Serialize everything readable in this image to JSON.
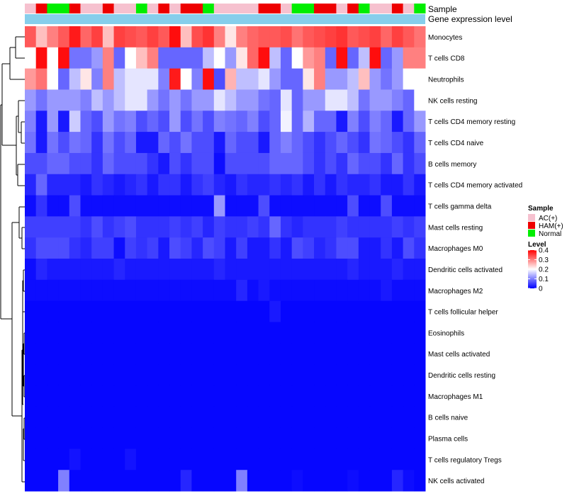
{
  "chart_data": {
    "type": "heatmap",
    "title": "",
    "annotation_labels": [
      "Sample",
      "Gene expression level"
    ],
    "sample_group_colors": {
      "AC(+)": "#f6c1cf",
      "HAM(+)": "#ee0000",
      "Normal": "#00ee00"
    },
    "sample_groups": [
      "AC(+)",
      "HAM(+)",
      "Normal",
      "Normal",
      "HAM(+)",
      "AC(+)",
      "AC(+)",
      "HAM(+)",
      "AC(+)",
      "AC(+)",
      "Normal",
      "AC(+)",
      "HAM(+)",
      "AC(+)",
      "HAM(+)",
      "HAM(+)",
      "Normal",
      "AC(+)",
      "AC(+)",
      "AC(+)",
      "AC(+)",
      "HAM(+)",
      "HAM(+)",
      "AC(+)",
      "Normal",
      "Normal",
      "HAM(+)",
      "HAM(+)",
      "AC(+)",
      "HAM(+)",
      "Normal",
      "AC(+)",
      "AC(+)",
      "HAM(+)",
      "AC(+)",
      "Normal"
    ],
    "rows": [
      "Monocytes",
      "T cells CD8",
      "Neutrophils",
      "NK cells resting",
      "T cells CD4 memory resting",
      "T cells CD4 naive",
      "B cells memory",
      "T cells CD4 memory activated",
      "T cells gamma delta",
      "Mast cells resting",
      "Macrophages M0",
      "Dendritic cells activated",
      "Macrophages M2",
      "T cells follicular helper",
      "Eosinophils",
      "Mast cells activated",
      "Dendritic cells resting",
      "Macrophages M1",
      "B cells naive",
      "Plasma cells",
      "T cells regulatory  Tregs",
      "NK cells activated"
    ],
    "values": [
      [
        0.33,
        0.25,
        0.3,
        0.33,
        0.38,
        0.32,
        0.35,
        0.25,
        0.35,
        0.34,
        0.33,
        0.35,
        0.33,
        0.39,
        0.25,
        0.34,
        0.36,
        0.3,
        0.22,
        0.3,
        0.32,
        0.33,
        0.33,
        0.34,
        0.31,
        0.33,
        0.34,
        0.35,
        0.36,
        0.33,
        0.34,
        0.35,
        0.32,
        0.35,
        0.33,
        0.31
      ],
      [
        0.2,
        0.39,
        0.2,
        0.39,
        0.09,
        0.09,
        0.12,
        0.3,
        0.08,
        0.2,
        0.25,
        0.3,
        0.08,
        0.08,
        0.08,
        0.08,
        0.15,
        0.2,
        0.12,
        0.22,
        0.32,
        0.39,
        0.15,
        0.08,
        0.2,
        0.28,
        0.3,
        0.08,
        0.39,
        0.08,
        0.15,
        0.39,
        0.08,
        0.12,
        0.3,
        0.3
      ],
      [
        0.28,
        0.31,
        0.2,
        0.08,
        0.15,
        0.22,
        0.1,
        0.3,
        0.15,
        0.18,
        0.18,
        0.18,
        0.1,
        0.38,
        0.2,
        0.1,
        0.39,
        0.06,
        0.26,
        0.15,
        0.15,
        0.18,
        0.12,
        0.08,
        0.08,
        0.22,
        0.3,
        0.12,
        0.12,
        0.15,
        0.25,
        0.12,
        0.09,
        0.12,
        0.2,
        0.2
      ],
      [
        0.12,
        0.09,
        0.12,
        0.12,
        0.12,
        0.1,
        0.15,
        0.12,
        0.15,
        0.18,
        0.18,
        0.12,
        0.09,
        0.12,
        0.09,
        0.12,
        0.12,
        0.18,
        0.15,
        0.12,
        0.12,
        0.09,
        0.08,
        0.18,
        0.08,
        0.12,
        0.12,
        0.18,
        0.18,
        0.15,
        0.09,
        0.12,
        0.12,
        0.1,
        0.08,
        0.2
      ],
      [
        0.1,
        0.02,
        0.12,
        0.02,
        0.16,
        0.08,
        0.06,
        0.12,
        0.09,
        0.1,
        0.06,
        0.08,
        0.06,
        0.12,
        0.06,
        0.09,
        0.06,
        0.1,
        0.09,
        0.08,
        0.1,
        0.06,
        0.08,
        0.19,
        0.08,
        0.14,
        0.08,
        0.08,
        0.02,
        0.1,
        0.06,
        0.1,
        0.08,
        0.02,
        0.08,
        0.12
      ],
      [
        0.09,
        0.02,
        0.09,
        0.06,
        0.09,
        0.08,
        0.04,
        0.09,
        0.06,
        0.08,
        0.02,
        0.02,
        0.08,
        0.06,
        0.09,
        0.06,
        0.06,
        0.02,
        0.08,
        0.06,
        0.06,
        0.02,
        0.08,
        0.1,
        0.08,
        0.06,
        0.04,
        0.06,
        0.08,
        0.06,
        0.04,
        0.09,
        0.08,
        0.06,
        0.04,
        0.08
      ],
      [
        0.06,
        0.06,
        0.08,
        0.08,
        0.06,
        0.06,
        0.04,
        0.08,
        0.06,
        0.06,
        0.06,
        0.04,
        0.02,
        0.06,
        0.04,
        0.06,
        0.06,
        0.01,
        0.06,
        0.06,
        0.06,
        0.06,
        0.08,
        0.08,
        0.08,
        0.06,
        0.04,
        0.06,
        0.04,
        0.08,
        0.06,
        0.06,
        0.04,
        0.08,
        0.04,
        0.06
      ],
      [
        0.03,
        0.08,
        0.03,
        0.03,
        0.03,
        0.02,
        0.04,
        0.03,
        0.02,
        0.03,
        0.04,
        0.02,
        0.04,
        0.04,
        0.02,
        0.04,
        0.05,
        0.03,
        0.02,
        0.04,
        0.03,
        0.03,
        0.04,
        0.03,
        0.04,
        0.02,
        0.04,
        0.02,
        0.04,
        0.03,
        0.03,
        0.04,
        0.02,
        0.02,
        0.04,
        0.02
      ],
      [
        0.01,
        0.04,
        0.01,
        0.01,
        0.06,
        0.01,
        0.01,
        0.01,
        0.01,
        0.01,
        0.01,
        0.01,
        0.01,
        0.01,
        0.01,
        0.01,
        0.01,
        0.12,
        0.01,
        0.01,
        0.01,
        0.06,
        0.01,
        0.01,
        0.01,
        0.01,
        0.01,
        0.01,
        0.01,
        0.06,
        0.01,
        0.01,
        0.06,
        0.01,
        0.01,
        0.01
      ],
      [
        0.05,
        0.05,
        0.05,
        0.05,
        0.05,
        0.04,
        0.06,
        0.04,
        0.05,
        0.06,
        0.04,
        0.04,
        0.04,
        0.05,
        0.04,
        0.05,
        0.03,
        0.05,
        0.04,
        0.04,
        0.05,
        0.04,
        0.08,
        0.04,
        0.03,
        0.04,
        0.04,
        0.04,
        0.05,
        0.04,
        0.04,
        0.04,
        0.04,
        0.05,
        0.04,
        0.05
      ],
      [
        0.04,
        0.06,
        0.06,
        0.06,
        0.04,
        0.03,
        0.05,
        0.05,
        0.01,
        0.05,
        0.04,
        0.05,
        0.02,
        0.06,
        0.05,
        0.03,
        0.06,
        0.05,
        0.02,
        0.05,
        0.02,
        0.02,
        0.04,
        0.02,
        0.06,
        0.05,
        0.03,
        0.04,
        0.06,
        0.06,
        0.02,
        0.02,
        0.04,
        0.02,
        0.06,
        0.04
      ],
      [
        0.01,
        0.03,
        0.02,
        0.02,
        0.02,
        0.02,
        0.02,
        0.02,
        0.03,
        0.02,
        0.02,
        0.02,
        0.02,
        0.02,
        0.02,
        0.02,
        0.02,
        0.03,
        0.02,
        0.02,
        0.02,
        0.02,
        0.02,
        0.02,
        0.02,
        0.02,
        0.02,
        0.02,
        0.02,
        0.03,
        0.02,
        0.02,
        0.02,
        0.03,
        0.02,
        0.02
      ],
      [
        0.01,
        0.01,
        0.01,
        0.01,
        0.01,
        0.01,
        0.01,
        0.01,
        0.01,
        0.01,
        0.01,
        0.01,
        0.01,
        0.01,
        0.01,
        0.01,
        0.01,
        0.01,
        0.01,
        0.03,
        0.01,
        0.02,
        0.01,
        0.01,
        0.01,
        0.01,
        0.01,
        0.01,
        0.01,
        0.01,
        0.01,
        0.01,
        0.02,
        0.01,
        0.01,
        0.01
      ],
      [
        0.005,
        0.005,
        0.005,
        0.005,
        0.005,
        0.005,
        0.005,
        0.005,
        0.005,
        0.005,
        0.005,
        0.005,
        0.005,
        0.005,
        0.005,
        0.005,
        0.005,
        0.005,
        0.005,
        0.005,
        0.005,
        0.005,
        0.02,
        0.005,
        0.005,
        0.005,
        0.005,
        0.005,
        0.005,
        0.005,
        0.005,
        0.005,
        0.005,
        0.005,
        0.005,
        0.005
      ],
      [
        0.005,
        0.005,
        0.005,
        0.005,
        0.005,
        0.005,
        0.005,
        0.005,
        0.005,
        0.005,
        0.005,
        0.005,
        0.005,
        0.005,
        0.005,
        0.005,
        0.005,
        0.005,
        0.005,
        0.005,
        0.005,
        0.005,
        0.005,
        0.005,
        0.005,
        0.005,
        0.005,
        0.005,
        0.005,
        0.005,
        0.005,
        0.005,
        0.005,
        0.005,
        0.005,
        0.005
      ],
      [
        0.005,
        0.005,
        0.005,
        0.005,
        0.005,
        0.005,
        0.005,
        0.005,
        0.005,
        0.005,
        0.005,
        0.005,
        0.005,
        0.005,
        0.005,
        0.005,
        0.005,
        0.005,
        0.005,
        0.005,
        0.005,
        0.005,
        0.005,
        0.005,
        0.005,
        0.005,
        0.005,
        0.005,
        0.005,
        0.005,
        0.005,
        0.005,
        0.005,
        0.005,
        0.005,
        0.005
      ],
      [
        0.005,
        0.005,
        0.005,
        0.005,
        0.005,
        0.005,
        0.005,
        0.005,
        0.005,
        0.005,
        0.005,
        0.005,
        0.005,
        0.005,
        0.005,
        0.005,
        0.005,
        0.005,
        0.005,
        0.005,
        0.005,
        0.005,
        0.005,
        0.005,
        0.005,
        0.005,
        0.005,
        0.005,
        0.005,
        0.005,
        0.005,
        0.005,
        0.005,
        0.005,
        0.005,
        0.005
      ],
      [
        0.005,
        0.005,
        0.005,
        0.005,
        0.005,
        0.005,
        0.005,
        0.005,
        0.005,
        0.005,
        0.005,
        0.005,
        0.005,
        0.005,
        0.005,
        0.005,
        0.005,
        0.005,
        0.005,
        0.005,
        0.005,
        0.005,
        0.005,
        0.005,
        0.005,
        0.005,
        0.005,
        0.005,
        0.005,
        0.005,
        0.005,
        0.005,
        0.005,
        0.005,
        0.005,
        0.005
      ],
      [
        0.005,
        0.005,
        0.005,
        0.005,
        0.005,
        0.005,
        0.005,
        0.005,
        0.005,
        0.005,
        0.005,
        0.005,
        0.005,
        0.005,
        0.005,
        0.005,
        0.005,
        0.005,
        0.005,
        0.005,
        0.005,
        0.005,
        0.005,
        0.005,
        0.005,
        0.005,
        0.005,
        0.005,
        0.005,
        0.005,
        0.005,
        0.005,
        0.005,
        0.005,
        0.005,
        0.005
      ],
      [
        0.005,
        0.005,
        0.005,
        0.005,
        0.005,
        0.005,
        0.005,
        0.005,
        0.005,
        0.005,
        0.005,
        0.005,
        0.005,
        0.005,
        0.005,
        0.005,
        0.005,
        0.005,
        0.005,
        0.005,
        0.005,
        0.005,
        0.005,
        0.005,
        0.005,
        0.005,
        0.005,
        0.005,
        0.005,
        0.005,
        0.005,
        0.005,
        0.005,
        0.005,
        0.005,
        0.005
      ],
      [
        0.005,
        0.005,
        0.005,
        0.005,
        0.015,
        0.005,
        0.005,
        0.005,
        0.005,
        0.015,
        0.005,
        0.005,
        0.005,
        0.005,
        0.005,
        0.005,
        0.005,
        0.005,
        0.005,
        0.005,
        0.005,
        0.005,
        0.005,
        0.005,
        0.005,
        0.005,
        0.005,
        0.005,
        0.005,
        0.005,
        0.005,
        0.005,
        0.005,
        0.005,
        0.005,
        0.005
      ],
      [
        0.005,
        0.005,
        0.005,
        0.1,
        0.005,
        0.005,
        0.005,
        0.005,
        0.005,
        0.005,
        0.005,
        0.005,
        0.005,
        0.005,
        0.03,
        0.005,
        0.005,
        0.005,
        0.005,
        0.1,
        0.005,
        0.005,
        0.005,
        0.005,
        0.01,
        0.005,
        0.005,
        0.005,
        0.005,
        0.01,
        0.005,
        0.005,
        0.005,
        0.03,
        0.01,
        0.005
      ]
    ],
    "column_annotation": "Gene expression level",
    "legend": {
      "sample_title": "Sample",
      "sample_entries": [
        "AC(+)",
        "HAM(+)",
        "Normal"
      ],
      "level_title": "Level",
      "level_ticks": [
        "0.4",
        "0.3",
        "0.2",
        "0.1",
        "0"
      ],
      "range": [
        0,
        0.4
      ]
    },
    "colors": {
      "low": "#0000ff",
      "mid": "#ffffff",
      "high": "#ff0000",
      "annotation_bar": "#87ceeb"
    }
  }
}
